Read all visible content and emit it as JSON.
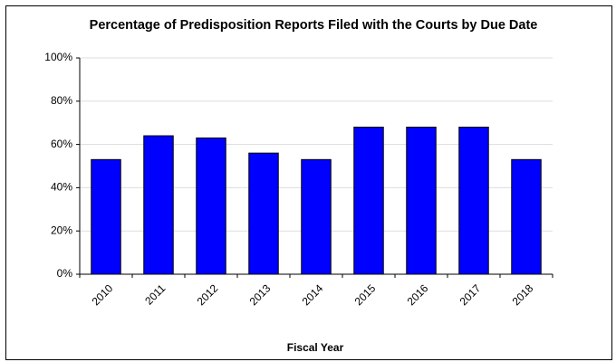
{
  "chart_data": {
    "type": "bar",
    "title": "Percentage of Predisposition Reports Filed with the Courts by Due Date",
    "x_label": "Fiscal Year",
    "categories": [
      "2010",
      "2011",
      "2012",
      "2013",
      "2014",
      "2015",
      "2016",
      "2017",
      "2018"
    ],
    "values": [
      53,
      64,
      63,
      56,
      53,
      68,
      68,
      68,
      53
    ],
    "color": "#0000ff",
    "ylim": [
      0,
      100
    ],
    "yticks": [
      {
        "value": 0,
        "label": "0%"
      },
      {
        "value": 20,
        "label": "20%"
      },
      {
        "value": 40,
        "label": "40%"
      },
      {
        "value": 60,
        "label": "60%"
      },
      {
        "value": 80,
        "label": "80%"
      },
      {
        "value": 100,
        "label": "100%"
      }
    ],
    "grid": true
  }
}
